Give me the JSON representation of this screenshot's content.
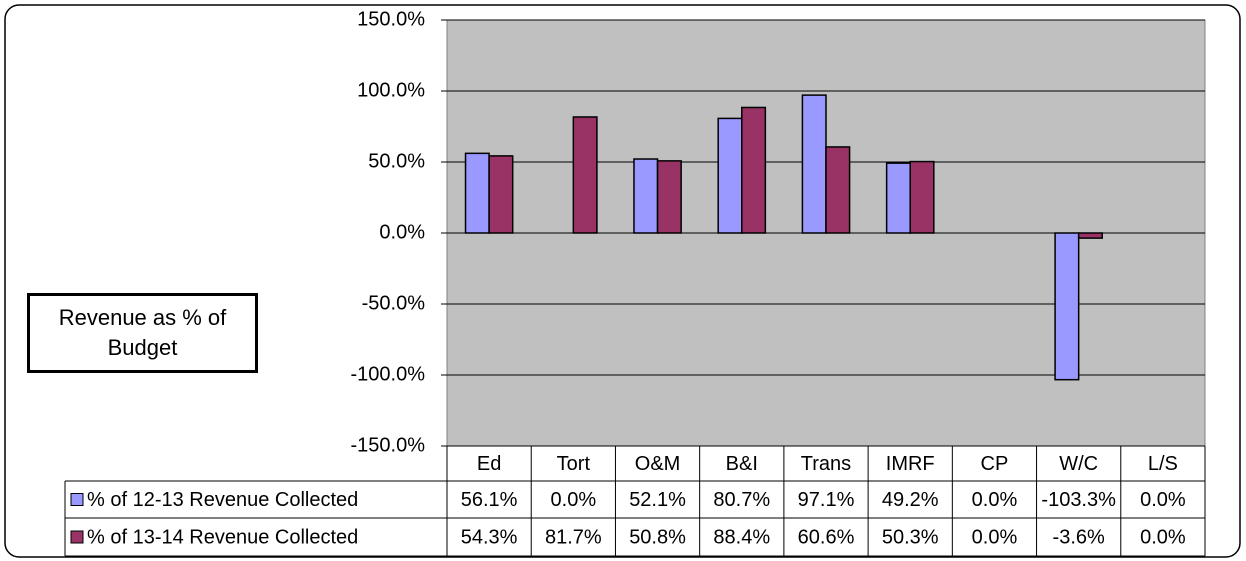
{
  "chart_data": {
    "type": "bar",
    "title": "Revenue as % of Budget",
    "categories": [
      "Ed",
      "Tort",
      "O&M",
      "B&I",
      "Trans",
      "IMRF",
      "CP",
      "W/C",
      "L/S"
    ],
    "series": [
      {
        "name": "% of 12-13 Revenue Collected",
        "color": "#9999ff",
        "values": [
          56.1,
          0.0,
          52.1,
          80.7,
          97.1,
          49.2,
          0.0,
          -103.3,
          0.0
        ],
        "value_labels": [
          "56.1%",
          "0.0%",
          "52.1%",
          "80.7%",
          "97.1%",
          "49.2%",
          "0.0%",
          "-103.3%",
          "0.0%"
        ]
      },
      {
        "name": "% of 13-14 Revenue Collected",
        "color": "#993366",
        "values": [
          54.3,
          81.7,
          50.8,
          88.4,
          60.6,
          50.3,
          0.0,
          -3.6,
          0.0
        ],
        "value_labels": [
          "54.3%",
          "81.7%",
          "50.8%",
          "88.4%",
          "60.6%",
          "50.3%",
          "0.0%",
          "-3.6%",
          "0.0%"
        ]
      }
    ],
    "ylim": [
      -150,
      150
    ],
    "yticks": [
      {
        "value": -150,
        "label": "-150.0%"
      },
      {
        "value": -100,
        "label": "-100.0%"
      },
      {
        "value": -50,
        "label": "-50.0%"
      },
      {
        "value": 0,
        "label": "0.0%"
      },
      {
        "value": 50,
        "label": "50.0%"
      },
      {
        "value": 100,
        "label": "100.0%"
      },
      {
        "value": 150,
        "label": "150.0%"
      }
    ],
    "grid": true
  }
}
